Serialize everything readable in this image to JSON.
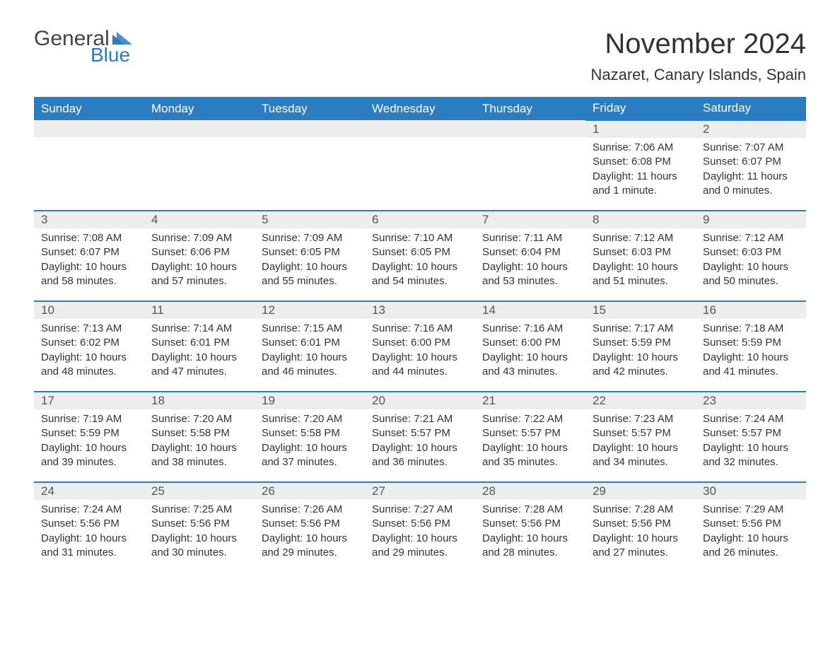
{
  "logo": {
    "general": "General",
    "blue": "Blue"
  },
  "title": "November 2024",
  "location": "Nazaret, Canary Islands, Spain",
  "colors": {
    "header_bg": "#2b7cc0",
    "header_text": "#ffffff",
    "daynum_bg": "#ededed",
    "border": "#2b7cc0",
    "text": "#333333",
    "logo_blue": "#2b7cc0"
  },
  "weekdays": [
    "Sunday",
    "Monday",
    "Tuesday",
    "Wednesday",
    "Thursday",
    "Friday",
    "Saturday"
  ],
  "weeks": [
    [
      null,
      null,
      null,
      null,
      null,
      {
        "n": "1",
        "sr": "Sunrise: 7:06 AM",
        "ss": "Sunset: 6:08 PM",
        "dl": "Daylight: 11 hours and 1 minute."
      },
      {
        "n": "2",
        "sr": "Sunrise: 7:07 AM",
        "ss": "Sunset: 6:07 PM",
        "dl": "Daylight: 11 hours and 0 minutes."
      }
    ],
    [
      {
        "n": "3",
        "sr": "Sunrise: 7:08 AM",
        "ss": "Sunset: 6:07 PM",
        "dl": "Daylight: 10 hours and 58 minutes."
      },
      {
        "n": "4",
        "sr": "Sunrise: 7:09 AM",
        "ss": "Sunset: 6:06 PM",
        "dl": "Daylight: 10 hours and 57 minutes."
      },
      {
        "n": "5",
        "sr": "Sunrise: 7:09 AM",
        "ss": "Sunset: 6:05 PM",
        "dl": "Daylight: 10 hours and 55 minutes."
      },
      {
        "n": "6",
        "sr": "Sunrise: 7:10 AM",
        "ss": "Sunset: 6:05 PM",
        "dl": "Daylight: 10 hours and 54 minutes."
      },
      {
        "n": "7",
        "sr": "Sunrise: 7:11 AM",
        "ss": "Sunset: 6:04 PM",
        "dl": "Daylight: 10 hours and 53 minutes."
      },
      {
        "n": "8",
        "sr": "Sunrise: 7:12 AM",
        "ss": "Sunset: 6:03 PM",
        "dl": "Daylight: 10 hours and 51 minutes."
      },
      {
        "n": "9",
        "sr": "Sunrise: 7:12 AM",
        "ss": "Sunset: 6:03 PM",
        "dl": "Daylight: 10 hours and 50 minutes."
      }
    ],
    [
      {
        "n": "10",
        "sr": "Sunrise: 7:13 AM",
        "ss": "Sunset: 6:02 PM",
        "dl": "Daylight: 10 hours and 48 minutes."
      },
      {
        "n": "11",
        "sr": "Sunrise: 7:14 AM",
        "ss": "Sunset: 6:01 PM",
        "dl": "Daylight: 10 hours and 47 minutes."
      },
      {
        "n": "12",
        "sr": "Sunrise: 7:15 AM",
        "ss": "Sunset: 6:01 PM",
        "dl": "Daylight: 10 hours and 46 minutes."
      },
      {
        "n": "13",
        "sr": "Sunrise: 7:16 AM",
        "ss": "Sunset: 6:00 PM",
        "dl": "Daylight: 10 hours and 44 minutes."
      },
      {
        "n": "14",
        "sr": "Sunrise: 7:16 AM",
        "ss": "Sunset: 6:00 PM",
        "dl": "Daylight: 10 hours and 43 minutes."
      },
      {
        "n": "15",
        "sr": "Sunrise: 7:17 AM",
        "ss": "Sunset: 5:59 PM",
        "dl": "Daylight: 10 hours and 42 minutes."
      },
      {
        "n": "16",
        "sr": "Sunrise: 7:18 AM",
        "ss": "Sunset: 5:59 PM",
        "dl": "Daylight: 10 hours and 41 minutes."
      }
    ],
    [
      {
        "n": "17",
        "sr": "Sunrise: 7:19 AM",
        "ss": "Sunset: 5:59 PM",
        "dl": "Daylight: 10 hours and 39 minutes."
      },
      {
        "n": "18",
        "sr": "Sunrise: 7:20 AM",
        "ss": "Sunset: 5:58 PM",
        "dl": "Daylight: 10 hours and 38 minutes."
      },
      {
        "n": "19",
        "sr": "Sunrise: 7:20 AM",
        "ss": "Sunset: 5:58 PM",
        "dl": "Daylight: 10 hours and 37 minutes."
      },
      {
        "n": "20",
        "sr": "Sunrise: 7:21 AM",
        "ss": "Sunset: 5:57 PM",
        "dl": "Daylight: 10 hours and 36 minutes."
      },
      {
        "n": "21",
        "sr": "Sunrise: 7:22 AM",
        "ss": "Sunset: 5:57 PM",
        "dl": "Daylight: 10 hours and 35 minutes."
      },
      {
        "n": "22",
        "sr": "Sunrise: 7:23 AM",
        "ss": "Sunset: 5:57 PM",
        "dl": "Daylight: 10 hours and 34 minutes."
      },
      {
        "n": "23",
        "sr": "Sunrise: 7:24 AM",
        "ss": "Sunset: 5:57 PM",
        "dl": "Daylight: 10 hours and 32 minutes."
      }
    ],
    [
      {
        "n": "24",
        "sr": "Sunrise: 7:24 AM",
        "ss": "Sunset: 5:56 PM",
        "dl": "Daylight: 10 hours and 31 minutes."
      },
      {
        "n": "25",
        "sr": "Sunrise: 7:25 AM",
        "ss": "Sunset: 5:56 PM",
        "dl": "Daylight: 10 hours and 30 minutes."
      },
      {
        "n": "26",
        "sr": "Sunrise: 7:26 AM",
        "ss": "Sunset: 5:56 PM",
        "dl": "Daylight: 10 hours and 29 minutes."
      },
      {
        "n": "27",
        "sr": "Sunrise: 7:27 AM",
        "ss": "Sunset: 5:56 PM",
        "dl": "Daylight: 10 hours and 29 minutes."
      },
      {
        "n": "28",
        "sr": "Sunrise: 7:28 AM",
        "ss": "Sunset: 5:56 PM",
        "dl": "Daylight: 10 hours and 28 minutes."
      },
      {
        "n": "29",
        "sr": "Sunrise: 7:28 AM",
        "ss": "Sunset: 5:56 PM",
        "dl": "Daylight: 10 hours and 27 minutes."
      },
      {
        "n": "30",
        "sr": "Sunrise: 7:29 AM",
        "ss": "Sunset: 5:56 PM",
        "dl": "Daylight: 10 hours and 26 minutes."
      }
    ]
  ]
}
